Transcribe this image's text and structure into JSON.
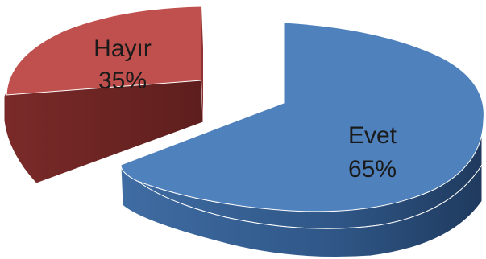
{
  "chart_data": {
    "type": "pie",
    "style": "3d-exploded",
    "slices": [
      {
        "label": "Hayır",
        "value": 35,
        "value_label": "35%",
        "color": "#C0504D"
      },
      {
        "label": "Evet",
        "value": 65,
        "value_label": "65%",
        "color": "#4F81BD"
      }
    ]
  }
}
